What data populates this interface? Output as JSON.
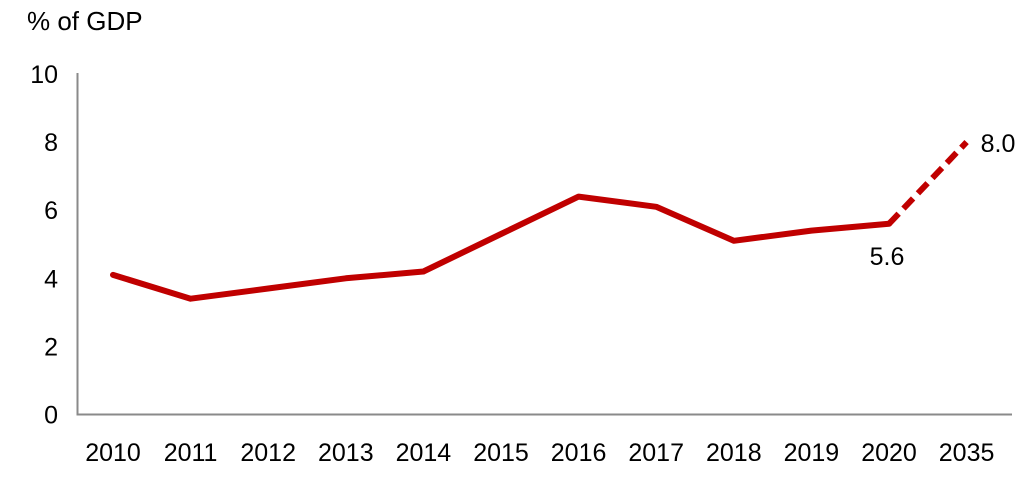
{
  "title": "% of GDP",
  "colors": {
    "line": "#c00000",
    "axis": "#8a8a8a",
    "text": "#000000",
    "background": "#ffffff"
  },
  "chart_data": {
    "type": "line",
    "title": "% of GDP",
    "categories": [
      "2010",
      "2011",
      "2012",
      "2013",
      "2014",
      "2015",
      "2016",
      "2017",
      "2018",
      "2019",
      "2020",
      "2035"
    ],
    "series": [
      {
        "name": "% of GDP",
        "values": [
          4.1,
          3.4,
          3.7,
          4.0,
          4.2,
          5.3,
          6.4,
          6.1,
          5.1,
          5.4,
          5.6,
          8.0
        ],
        "solid_through_category": "2020",
        "dashed_from_category": "2020"
      }
    ],
    "xlabel": "",
    "ylabel": "% of GDP",
    "ylim": [
      0,
      10
    ],
    "yticks": [
      0,
      2,
      4,
      6,
      8,
      10
    ],
    "grid": false,
    "legend": false,
    "annotations": [
      {
        "label": "5.6",
        "category": "2020",
        "placement": "below"
      },
      {
        "label": "8.0",
        "category": "2035",
        "placement": "right"
      }
    ]
  }
}
